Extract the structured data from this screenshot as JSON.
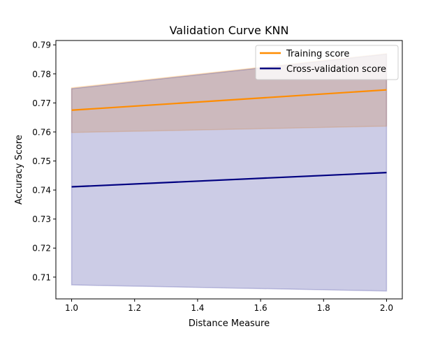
{
  "chart_data": {
    "type": "line",
    "title": "Validation Curve KNN",
    "xlabel": "Distance Measure",
    "ylabel": "Accuracy Score",
    "xlim": [
      0.95,
      2.05
    ],
    "ylim": [
      0.7025,
      0.7915
    ],
    "x_ticks": [
      1.0,
      1.2,
      1.4,
      1.6,
      1.8,
      2.0
    ],
    "x_tick_labels": [
      "1.0",
      "1.2",
      "1.4",
      "1.6",
      "1.8",
      "2.0"
    ],
    "y_ticks": [
      0.71,
      0.72,
      0.73,
      0.74,
      0.75,
      0.76,
      0.77,
      0.78,
      0.79
    ],
    "y_tick_labels": [
      "0.71",
      "0.72",
      "0.73",
      "0.74",
      "0.75",
      "0.76",
      "0.77",
      "0.78",
      "0.79"
    ],
    "grid": false,
    "legend_position": "top-right",
    "x": [
      1.0,
      2.0
    ],
    "series": [
      {
        "name": "Training score",
        "values": [
          0.7675,
          0.7745
        ],
        "band_lower": [
          0.7598,
          0.762
        ],
        "band_upper": [
          0.7752,
          0.787
        ],
        "color": "#ff8c00",
        "band_color": "#ff8c00"
      },
      {
        "name": "Cross-validation score",
        "values": [
          0.7411,
          0.746
        ],
        "band_lower": [
          0.7073,
          0.7052
        ],
        "band_upper": [
          0.7749,
          0.7868
        ],
        "color": "#000080",
        "band_color": "#000080"
      }
    ]
  }
}
